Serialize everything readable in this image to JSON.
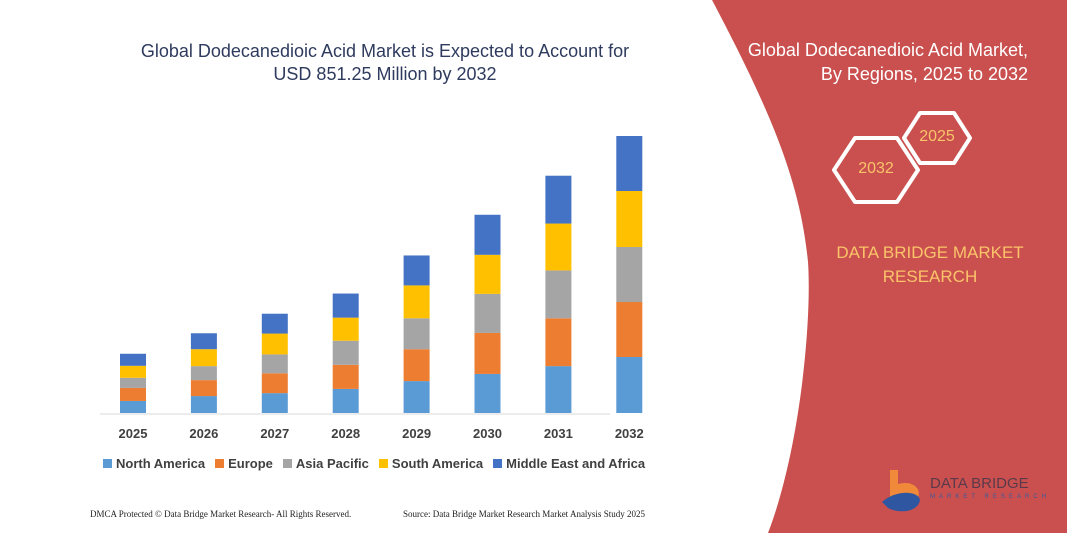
{
  "header": {
    "title_line1": "Global Dodecanedioic Acid Market is Expected to Account for",
    "title_line2": "USD 851.25 Million by 2032"
  },
  "side_panel": {
    "title_line1": "Global Dodecanedioic Acid Market,",
    "title_line2": "By Regions, 2025 to 2032",
    "hex_years": [
      "2032",
      "2025"
    ],
    "brand_line1": "DATA BRIDGE MARKET",
    "brand_line2": "RESEARCH",
    "panel_color": "#c9504e",
    "accent_text_color": "#fbc36a"
  },
  "logo": {
    "name": "DATA BRIDGE",
    "sub": "MARKET RESEARCH"
  },
  "footer": {
    "left": "DMCA Protected © Data Bridge Market Research-  All Rights Reserved.",
    "right": "Source: Data Bridge Market Research  Market Analysis Study 2025"
  },
  "chart_data": {
    "type": "bar",
    "stacked": true,
    "categories": [
      "2025",
      "2026",
      "2027",
      "2028",
      "2029",
      "2030",
      "2031",
      "2032"
    ],
    "series": [
      {
        "name": "North America",
        "color": "#5b9bd5",
        "values": [
          37,
          52,
          61,
          74,
          98,
          120,
          144,
          172
        ]
      },
      {
        "name": "Europe",
        "color": "#ed7d31",
        "values": [
          40,
          49,
          61,
          74,
          98,
          126,
          147,
          169
        ]
      },
      {
        "name": "Asia Pacific",
        "color": "#a5a5a5",
        "values": [
          31,
          43,
          58,
          74,
          95,
          120,
          147,
          169
        ]
      },
      {
        "name": "South America",
        "color": "#ffc000",
        "values": [
          37,
          52,
          64,
          71,
          101,
          120,
          144,
          172
        ]
      },
      {
        "name": "Middle East and Africa",
        "color": "#4472c4",
        "values": [
          37,
          49,
          61,
          74,
          92,
          123,
          147,
          169
        ]
      }
    ],
    "ylim": [
      0,
      860
    ],
    "grid": false,
    "legend_position": "bottom"
  }
}
